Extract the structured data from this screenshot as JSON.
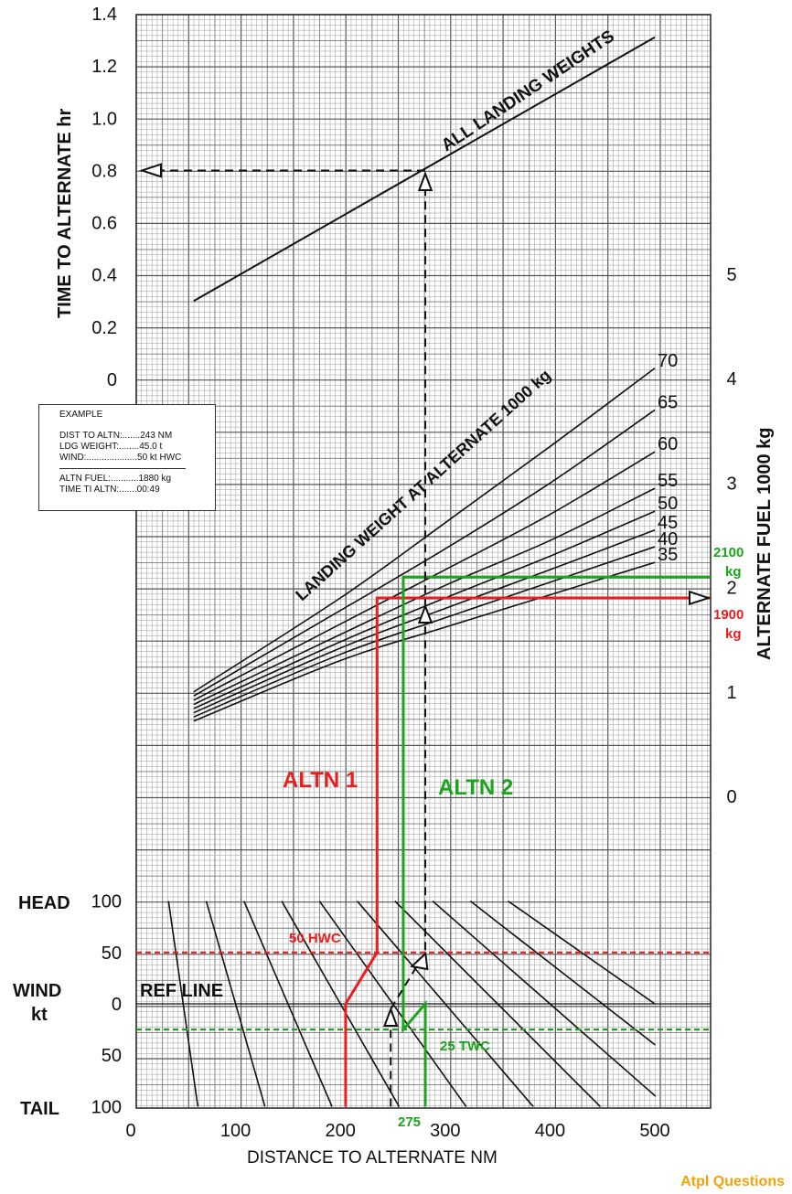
{
  "chart_data": {
    "type": "line",
    "title": "",
    "panels": {
      "time": {
        "ylabel": "TIME TO ALTERNATE  hr",
        "yticks": [
          "1.4",
          "1.2",
          "1.0",
          "0.8",
          "0.6",
          "0.4",
          "0.2",
          "0"
        ],
        "series": [
          {
            "name": "ALL LANDING WEIGHTS",
            "x": [
              60,
              500
            ],
            "y": [
              0.3,
              1.31
            ]
          }
        ]
      },
      "fuel": {
        "ylabel": "ALTERNATE FUEL  1000 kg",
        "yticks": [
          "5",
          "4",
          "3",
          "2",
          "1",
          "0"
        ],
        "curve_label": "LANDING WEIGHT AT ALTERNATE 1000 kg",
        "series": [
          {
            "name": "70",
            "x": [
              60,
              200,
              300,
              400,
              500
            ],
            "y": [
              1.0,
              1.9,
              2.62,
              3.35,
              4.1
            ]
          },
          {
            "name": "65",
            "x": [
              60,
              200,
              300,
              400,
              500
            ],
            "y": [
              0.96,
              1.78,
              2.37,
              3.0,
              3.7
            ]
          },
          {
            "name": "60",
            "x": [
              60,
              200,
              300,
              400,
              500
            ],
            "y": [
              0.92,
              1.65,
              2.17,
              2.7,
              3.3
            ]
          },
          {
            "name": "55",
            "x": [
              60,
              200,
              300,
              400,
              500
            ],
            "y": [
              0.88,
              1.55,
              2.02,
              2.45,
              2.95
            ]
          },
          {
            "name": "50",
            "x": [
              60,
              200,
              300,
              400,
              500
            ],
            "y": [
              0.84,
              1.48,
              1.9,
              2.3,
              2.73
            ]
          },
          {
            "name": "45",
            "x": [
              60,
              200,
              300,
              400,
              500
            ],
            "y": [
              0.8,
              1.42,
              1.8,
              2.17,
              2.55
            ]
          },
          {
            "name": "40",
            "x": [
              60,
              200,
              300,
              400,
              500
            ],
            "y": [
              0.76,
              1.36,
              1.71,
              2.05,
              2.39
            ]
          },
          {
            "name": "35",
            "x": [
              60,
              200,
              300,
              400,
              500
            ],
            "y": [
              0.72,
              1.3,
              1.62,
              1.93,
              2.24
            ]
          }
        ]
      },
      "wind": {
        "ylabel_top": "HEAD",
        "ylabel_mid": "WIND",
        "ylabel_unit": "kt",
        "ylabel_bottom": "TAIL",
        "yticks": [
          "100",
          "50",
          "0",
          "50",
          "100"
        ],
        "ref_line_label": "REF LINE",
        "zero_wind_distances": [
          50,
          100,
          150,
          200,
          250,
          300,
          350,
          400,
          450,
          500
        ]
      }
    },
    "xlabel": "DISTANCE TO ALTERNATE  NM",
    "xticks": [
      "0",
      "100",
      "200",
      "300",
      "400",
      "500"
    ],
    "xlim": [
      0,
      560
    ],
    "annotations": {
      "altn1": {
        "label": "ALTN 1",
        "color": "#ee1c1c",
        "wind_label": "50 HWC",
        "wind": 50,
        "fuel_label_value": "1900",
        "fuel_label_unit": "kg",
        "fuel": 1.9
      },
      "altn2": {
        "label": "ALTN 2",
        "color": "#1aa51a",
        "wind_label": "25 TWC",
        "wind": -25,
        "distance_label": "275",
        "distance": 275,
        "fuel_label_value": "2100",
        "fuel_label_unit": "kg",
        "fuel": 2.1
      },
      "example_time": 0.8
    }
  },
  "example": {
    "title": "EXAMPLE",
    "rows1": [
      {
        "label": "DIST TO ALTN:.......",
        "value": "243 NM"
      },
      {
        "label": "LDG WEIGHT:........",
        "value": "45.0 t"
      },
      {
        "label": "WIND:....................",
        "value": "50 kt HWC"
      }
    ],
    "rows2": [
      {
        "label": "ALTN FUEL:...........",
        "value": "1880 kg"
      },
      {
        "label": "TIME TI ALTN:.......",
        "value": "00:49"
      }
    ]
  },
  "watermark": "Atpl Questions",
  "colors": {
    "red": "#ee1c1c",
    "green": "#1aa51a",
    "grid": "#9a9a9a",
    "ink": "#111111",
    "brand": "#f0a30a"
  }
}
